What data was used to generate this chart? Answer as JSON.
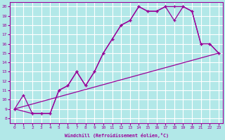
{
  "xlabel": "Windchill (Refroidissement éolien,°C)",
  "xlim": [
    -0.5,
    23.5
  ],
  "ylim": [
    7.5,
    20.5
  ],
  "xticks": [
    0,
    1,
    2,
    3,
    4,
    5,
    6,
    7,
    8,
    9,
    10,
    11,
    12,
    13,
    14,
    15,
    16,
    17,
    18,
    19,
    20,
    21,
    22,
    23
  ],
  "yticks": [
    8,
    9,
    10,
    11,
    12,
    13,
    14,
    15,
    16,
    17,
    18,
    19,
    20
  ],
  "bg_color": "#b2e8e8",
  "grid_color": "#ffffff",
  "line_color": "#990099",
  "line1_x": [
    0,
    23
  ],
  "line1_y": [
    9,
    15
  ],
  "line2_x": [
    0,
    1,
    2,
    3,
    4,
    5,
    6,
    7,
    8,
    9,
    10,
    11,
    12,
    13,
    14,
    15,
    16,
    17,
    18,
    19,
    20,
    21,
    22,
    23
  ],
  "line2_y": [
    9,
    10.5,
    8.5,
    8.5,
    8.5,
    11.0,
    11.5,
    13.0,
    11.5,
    13.0,
    15.0,
    16.5,
    18.0,
    18.5,
    20.0,
    19.5,
    19.5,
    20.0,
    20.0,
    20.0,
    19.5,
    16.0,
    16.0,
    15.0
  ],
  "line3_x": [
    0,
    2,
    3,
    4,
    5,
    6,
    7,
    8,
    9,
    10,
    11,
    12,
    13,
    14,
    15,
    16,
    17,
    18,
    19,
    20,
    21,
    22,
    23
  ],
  "line3_y": [
    9,
    8.5,
    8.5,
    8.5,
    11.0,
    11.5,
    13.0,
    11.5,
    13.0,
    15.0,
    16.5,
    18.0,
    18.5,
    20.0,
    19.5,
    19.5,
    20.0,
    18.5,
    20.0,
    19.5,
    16.0,
    16.0,
    15.0
  ]
}
